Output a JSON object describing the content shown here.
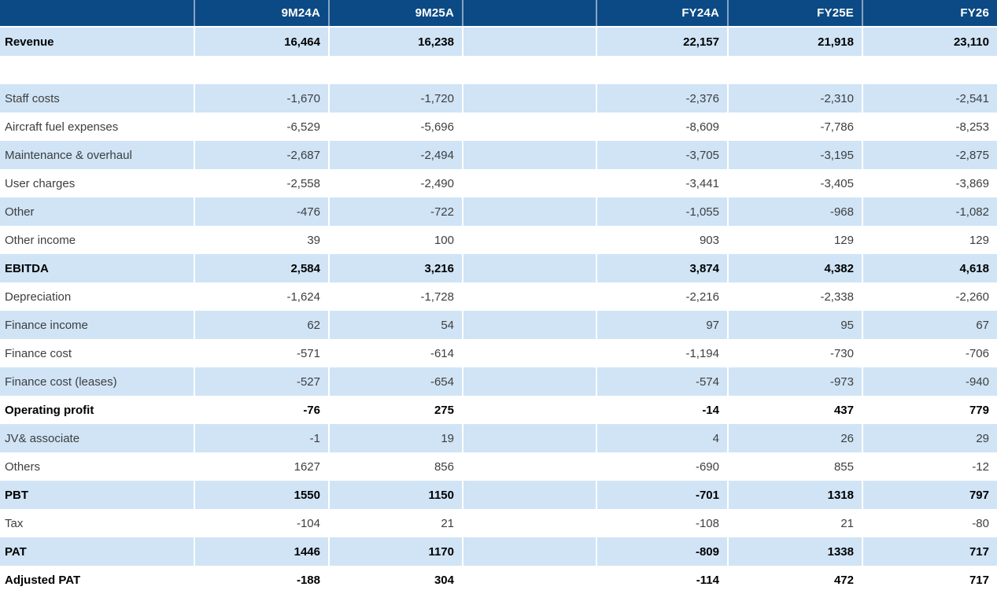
{
  "colors": {
    "header_bg": "#0c4a85",
    "row_shade_bg": "#d0e4f6",
    "body_text": "#3e3e3e",
    "bold_text": "#000000",
    "header_text": "#ffffff"
  },
  "table": {
    "columns": [
      "",
      "9M24A",
      "9M25A",
      "",
      "FY24A",
      "FY25E",
      "FY26"
    ],
    "rows": [
      {
        "label": "Revenue",
        "bold": true,
        "values": [
          "16,464",
          "16,238",
          "22,157",
          "21,918",
          "23,110"
        ]
      },
      {
        "label": "",
        "bold": false,
        "values": [
          "",
          "",
          "",
          "",
          ""
        ]
      },
      {
        "label": "Staff costs",
        "bold": false,
        "values": [
          "-1,670",
          "-1,720",
          "-2,376",
          "-2,310",
          "-2,541"
        ]
      },
      {
        "label": "Aircraft fuel expenses",
        "bold": false,
        "values": [
          "-6,529",
          "-5,696",
          "-8,609",
          "-7,786",
          "-8,253"
        ]
      },
      {
        "label": "Maintenance & overhaul",
        "bold": false,
        "values": [
          "-2,687",
          "-2,494",
          "-3,705",
          "-3,195",
          "-2,875"
        ]
      },
      {
        "label": "User charges",
        "bold": false,
        "values": [
          "-2,558",
          "-2,490",
          "-3,441",
          "-3,405",
          "-3,869"
        ]
      },
      {
        "label": "Other",
        "bold": false,
        "values": [
          "-476",
          "-722",
          "-1,055",
          "-968",
          "-1,082"
        ]
      },
      {
        "label": "Other income",
        "bold": false,
        "values": [
          "39",
          "100",
          "903",
          "129",
          "129"
        ]
      },
      {
        "label": "EBITDA",
        "bold": true,
        "values": [
          "2,584",
          "3,216",
          "3,874",
          "4,382",
          "4,618"
        ]
      },
      {
        "label": "Depreciation",
        "bold": false,
        "values": [
          "-1,624",
          "-1,728",
          "-2,216",
          "-2,338",
          "-2,260"
        ]
      },
      {
        "label": "Finance income",
        "bold": false,
        "values": [
          "62",
          "54",
          "97",
          "95",
          "67"
        ]
      },
      {
        "label": "Finance cost",
        "bold": false,
        "values": [
          "-571",
          "-614",
          "-1,194",
          "-730",
          "-706"
        ]
      },
      {
        "label": "Finance cost (leases)",
        "bold": false,
        "values": [
          "-527",
          "-654",
          "-574",
          "-973",
          "-940"
        ]
      },
      {
        "label": "Operating profit",
        "bold": true,
        "values": [
          "-76",
          "275",
          "-14",
          "437",
          "779"
        ]
      },
      {
        "label": "JV& associate",
        "bold": false,
        "values": [
          "-1",
          "19",
          "4",
          "26",
          "29"
        ]
      },
      {
        "label": "Others",
        "bold": false,
        "values": [
          "1627",
          "856",
          "-690",
          "855",
          "-12"
        ]
      },
      {
        "label": "PBT",
        "bold": true,
        "values": [
          "1550",
          "1150",
          "-701",
          "1318",
          "797"
        ]
      },
      {
        "label": "Tax",
        "bold": false,
        "values": [
          "-104",
          "21",
          "-108",
          "21",
          "-80"
        ]
      },
      {
        "label": "PAT",
        "bold": true,
        "values": [
          "1446",
          "1170",
          "-809",
          "1338",
          "717"
        ]
      },
      {
        "label": "Adjusted PAT",
        "bold": true,
        "values": [
          "-188",
          "304",
          "-114",
          "472",
          "717"
        ]
      }
    ]
  }
}
